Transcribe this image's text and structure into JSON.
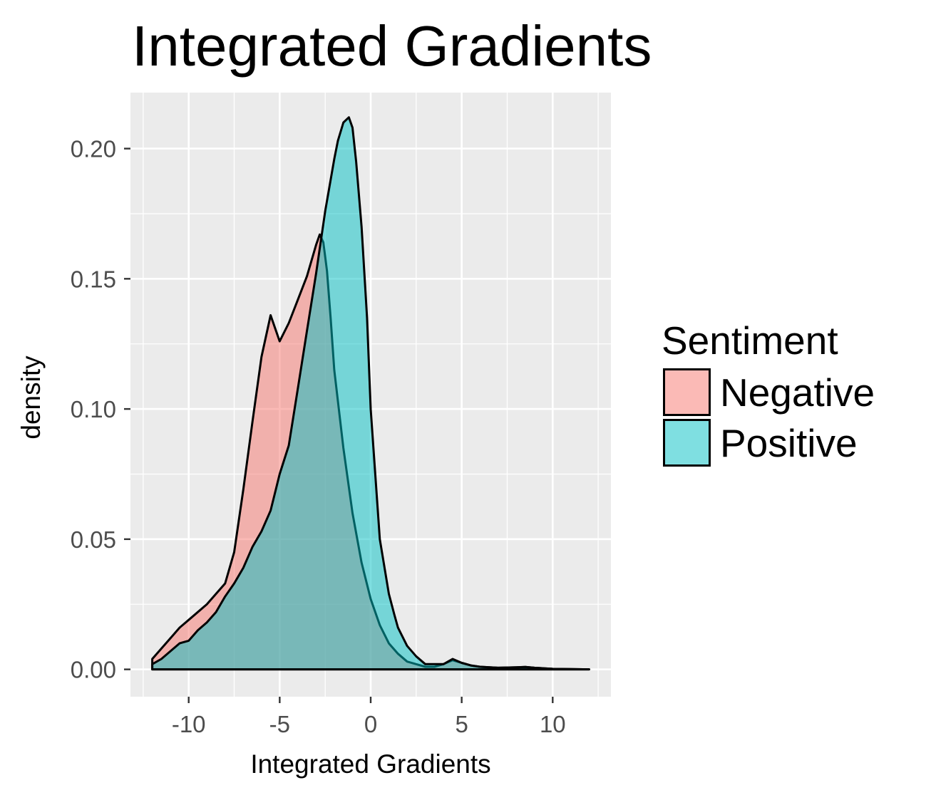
{
  "colors": {
    "panel_background": "#EBEBEB",
    "grid_line": "#FFFFFF",
    "tick_text": "#4D4D4D",
    "outline": "#000000"
  },
  "chart_data": {
    "type": "area",
    "subtype": "density",
    "title": "Integrated Gradients",
    "xlabel": "Integrated Gradients",
    "ylabel": "density",
    "xlim": [
      -13.2,
      13.2
    ],
    "ylim": [
      -0.0105,
      0.2215
    ],
    "x_ticks": [
      -10,
      -5,
      0,
      5,
      10
    ],
    "x_tick_labels": [
      "-10",
      "-5",
      "0",
      "5",
      "10"
    ],
    "y_ticks": [
      0,
      0.05,
      0.1,
      0.15,
      0.2
    ],
    "y_tick_labels": [
      "0.00",
      "0.05",
      "0.10",
      "0.15",
      "0.20"
    ],
    "grid": true,
    "legend": {
      "title": "Sentiment",
      "position": "right"
    },
    "series": [
      {
        "name": "Negative",
        "color": "#F8766D",
        "fill_opacity": 0.5,
        "x": [
          -12,
          -11.5,
          -11,
          -10.5,
          -10,
          -9.5,
          -9,
          -8.5,
          -8,
          -7.5,
          -7,
          -6.5,
          -6,
          -5.5,
          -5,
          -4.5,
          -4,
          -3.5,
          -3,
          -2.8,
          -2.6,
          -2.4,
          -2.2,
          -2,
          -1.5,
          -1,
          -0.5,
          0,
          0.5,
          1,
          1.5,
          2,
          2.5,
          3,
          3.5,
          4,
          4.5,
          5,
          5.5,
          6,
          7,
          8,
          8.5,
          9,
          10,
          11,
          12
        ],
        "values": [
          0.004,
          0.008,
          0.012,
          0.016,
          0.019,
          0.022,
          0.025,
          0.029,
          0.033,
          0.045,
          0.069,
          0.095,
          0.12,
          0.136,
          0.126,
          0.133,
          0.142,
          0.151,
          0.163,
          0.167,
          0.164,
          0.153,
          0.135,
          0.115,
          0.085,
          0.06,
          0.041,
          0.027,
          0.017,
          0.01,
          0.006,
          0.003,
          0.002,
          0.001,
          0.001,
          0.002,
          0.0035,
          0.0025,
          0.0015,
          0.001,
          0.0006,
          0.0008,
          0.0009,
          0.0006,
          0.0002,
          0.0001,
          0
        ]
      },
      {
        "name": "Positive",
        "color": "#00BFC4",
        "fill_opacity": 0.5,
        "x": [
          -12,
          -11.5,
          -11,
          -10.5,
          -10,
          -9.5,
          -9,
          -8.5,
          -8,
          -7.5,
          -7,
          -6.5,
          -6,
          -5.5,
          -5,
          -4.5,
          -4,
          -3.5,
          -3,
          -2.5,
          -2,
          -1.8,
          -1.5,
          -1.2,
          -1,
          -0.8,
          -0.5,
          -0.2,
          0,
          0.5,
          1,
          1.3,
          1.5,
          2,
          2.5,
          3,
          3.5,
          4,
          4.5,
          5,
          5.5,
          6,
          7,
          8,
          8.5,
          9,
          10,
          11,
          12
        ],
        "values": [
          0.002,
          0.004,
          0.007,
          0.01,
          0.011,
          0.015,
          0.018,
          0.022,
          0.028,
          0.033,
          0.039,
          0.047,
          0.053,
          0.061,
          0.075,
          0.086,
          0.108,
          0.13,
          0.152,
          0.176,
          0.196,
          0.203,
          0.21,
          0.212,
          0.208,
          0.195,
          0.17,
          0.135,
          0.1,
          0.05,
          0.029,
          0.021,
          0.016,
          0.009,
          0.005,
          0.002,
          0.002,
          0.002,
          0.004,
          0.0025,
          0.0015,
          0.001,
          0.0006,
          0.0008,
          0.0009,
          0.0006,
          0.0002,
          0.0001,
          0
        ]
      }
    ]
  }
}
